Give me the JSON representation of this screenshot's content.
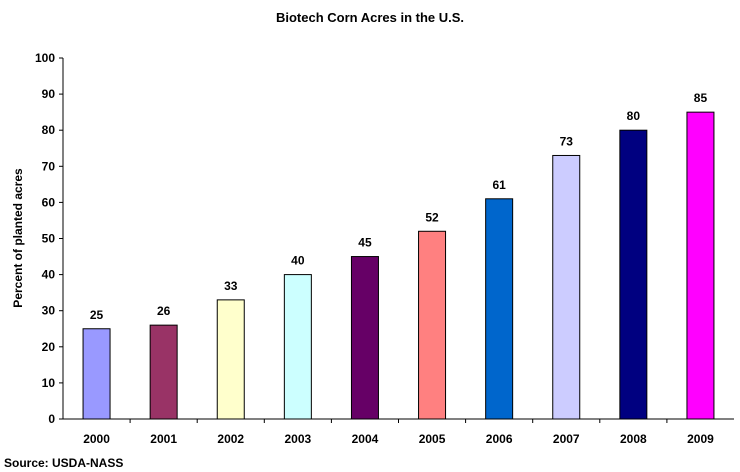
{
  "chart_data": {
    "type": "bar",
    "title": "Biotech Corn Acres in the U.S.",
    "xlabel": "",
    "ylabel": "Percent of planted acres",
    "ylim": [
      0,
      100
    ],
    "yticks": [
      0,
      10,
      20,
      30,
      40,
      50,
      60,
      70,
      80,
      90,
      100
    ],
    "categories": [
      "2000",
      "2001",
      "2002",
      "2003",
      "2004",
      "2005",
      "2006",
      "2007",
      "2008",
      "2009"
    ],
    "values": [
      25,
      26,
      33,
      40,
      45,
      52,
      61,
      73,
      80,
      85
    ],
    "data_labels": [
      "25",
      "26",
      "33",
      "40",
      "45",
      "52",
      "61",
      "73",
      "80",
      "85"
    ],
    "colors": [
      "#9999ff",
      "#993366",
      "#ffffcc",
      "#ccffff",
      "#660066",
      "#ff8080",
      "#0066cc",
      "#ccccff",
      "#000080",
      "#ff00ff"
    ],
    "grid": false,
    "legend": "none",
    "source": "Source: USDA-NASS"
  }
}
